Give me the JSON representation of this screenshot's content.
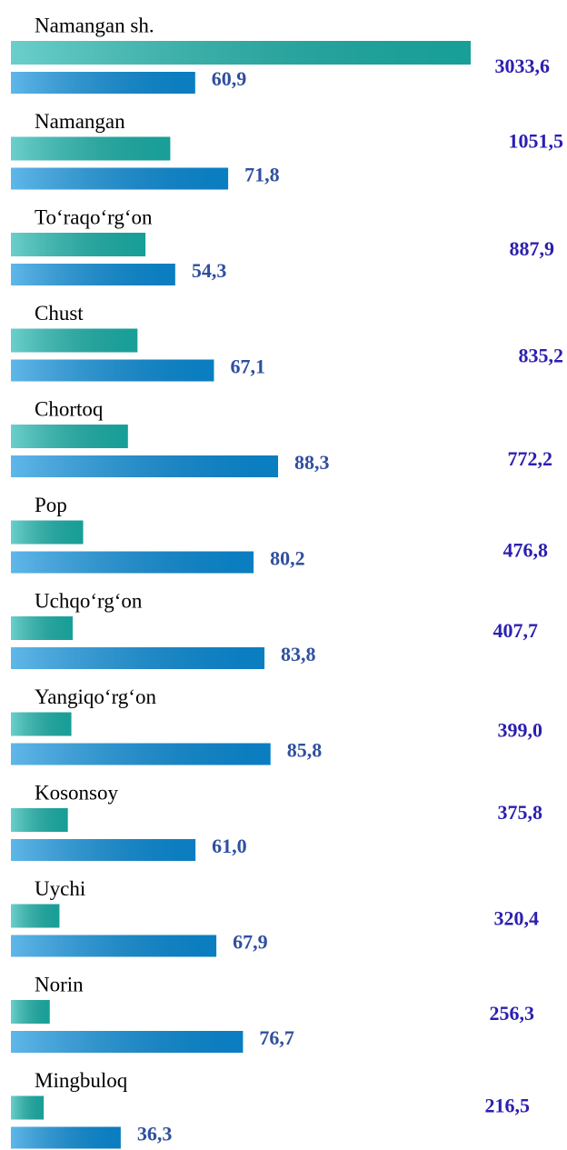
{
  "chart_data": {
    "type": "bar",
    "orientation": "horizontal",
    "categories": [
      "Namangan sh.",
      "Namangan",
      "To‘raqo‘rg‘on",
      "Chust",
      "Chortoq",
      "Pop",
      "Uchqo‘rg‘on",
      "Yangiqo‘rg‘on",
      "Kosonsoy",
      "Uychi",
      "Norin",
      "Mingbuloq"
    ],
    "series": [
      {
        "color": "#1bb5ad",
        "values": [
          3033.6,
          1051.5,
          887.9,
          835.2,
          772.2,
          476.8,
          407.7,
          399.0,
          375.8,
          320.4,
          256.3,
          216.5
        ],
        "value_labels": [
          "3033,6",
          "1051,5",
          "887,9",
          "835,2",
          "772,2",
          "476,8",
          "407,7",
          "399,0",
          "375,8",
          "320,4",
          "256,3",
          "216,5"
        ]
      },
      {
        "color": "#0a8fdc",
        "values": [
          60.9,
          71.8,
          54.3,
          67.1,
          88.3,
          80.2,
          83.8,
          85.8,
          61.0,
          67.9,
          76.7,
          36.3
        ],
        "value_labels": [
          "60,9",
          "71,8",
          "54,3",
          "67,1",
          "88,3",
          "80,2",
          "83,8",
          "85,8",
          "61,0",
          "67,9",
          "76,7",
          "36,3"
        ]
      }
    ]
  }
}
